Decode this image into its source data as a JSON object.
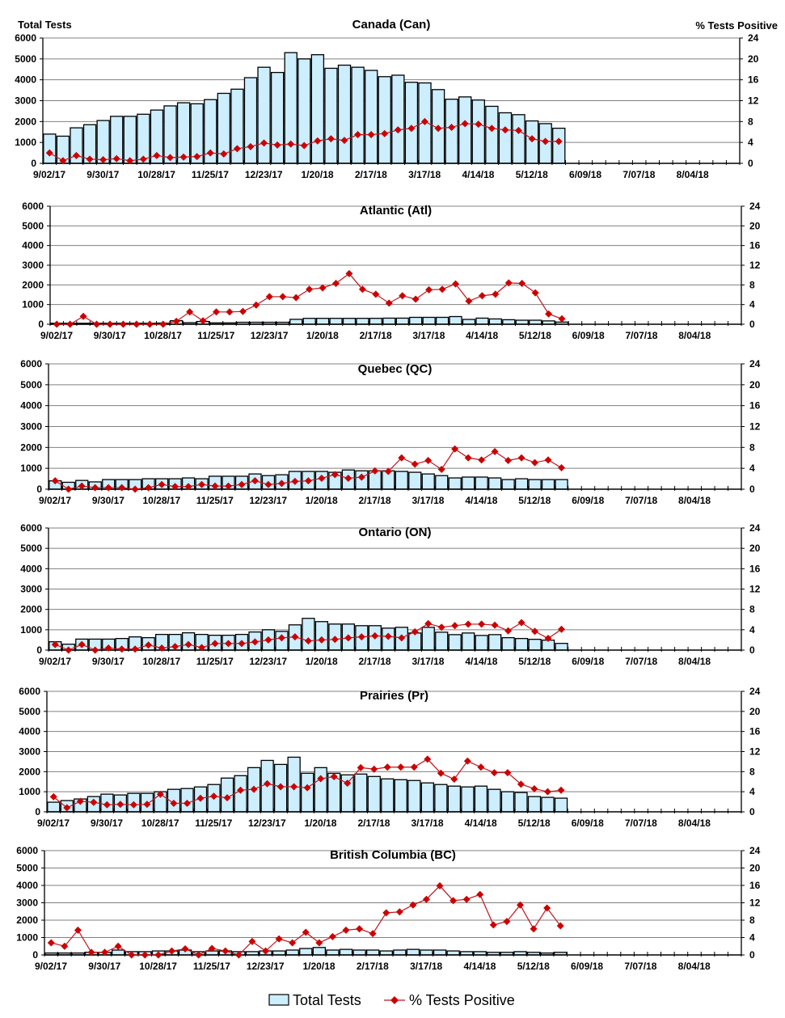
{
  "header": {
    "left_axis_title": "Total Tests",
    "right_axis_title": "% Tests Positive"
  },
  "legend": {
    "bar_label": "Total Tests",
    "line_label": "% Tests Positive"
  },
  "colors": {
    "bar_fill": "#cceeff",
    "bar_stroke": "#000000",
    "line": "#c0141c",
    "marker": "#cc0000",
    "grid": "#808080"
  },
  "chart_data": [
    {
      "type": "bar",
      "title": "Canada (Can)",
      "grid": true,
      "ylim": [
        0,
        6000
      ],
      "yticks": [
        0,
        1000,
        2000,
        3000,
        4000,
        5000,
        6000
      ],
      "y2lim": [
        0,
        24
      ],
      "y2ticks": [
        0,
        4,
        8,
        12,
        16,
        20,
        24
      ],
      "xlim": [
        "9/02/17",
        "9/01/18"
      ],
      "xticks": [
        "9/02/17",
        "9/30/17",
        "10/28/17",
        "11/25/17",
        "12/23/17",
        "1/20/18",
        "2/17/18",
        "3/17/18",
        "4/14/18",
        "5/12/18",
        "6/09/18",
        "7/07/18",
        "8/04/18"
      ],
      "categories": [
        "9/02/17",
        "9/09/17",
        "9/16/17",
        "9/23/17",
        "9/30/17",
        "10/07/17",
        "10/14/17",
        "10/21/17",
        "10/28/17",
        "11/04/17",
        "11/11/17",
        "11/18/17",
        "11/25/17",
        "12/02/17",
        "12/09/17",
        "12/16/17",
        "12/23/17",
        "12/30/17",
        "1/06/18",
        "1/13/18",
        "1/20/18",
        "1/27/18",
        "2/03/18",
        "2/10/18",
        "2/17/18",
        "2/24/18",
        "3/03/18",
        "3/10/18",
        "3/17/18",
        "3/24/18",
        "3/31/18",
        "4/07/18",
        "4/14/18",
        "4/21/18",
        "4/28/18",
        "5/05/18",
        "5/12/18",
        "5/19/18",
        "5/26/18"
      ],
      "series": [
        {
          "name": "Total Tests",
          "type": "bar",
          "axis": "left",
          "values": [
            1400,
            1300,
            1700,
            1850,
            2050,
            2250,
            2250,
            2350,
            2550,
            2750,
            2900,
            2850,
            3050,
            3350,
            3550,
            4100,
            4600,
            4350,
            5300,
            5000,
            5200,
            4550,
            4700,
            4600,
            4450,
            4150,
            4220,
            3880,
            3850,
            3530,
            3070,
            3180,
            3030,
            2730,
            2420,
            2330,
            2030,
            1900,
            1680
          ]
        },
        {
          "name": "% Tests Positive",
          "type": "line",
          "axis": "right",
          "values": [
            2.0,
            0.5,
            1.5,
            0.8,
            0.7,
            0.9,
            0.5,
            0.8,
            1.5,
            1.1,
            1.2,
            1.3,
            2.0,
            1.8,
            2.8,
            3.2,
            3.9,
            3.5,
            3.7,
            3.4,
            4.3,
            4.7,
            4.4,
            5.5,
            5.5,
            5.7,
            6.4,
            6.7,
            8.0,
            6.7,
            6.9,
            7.6,
            7.5,
            6.7,
            6.4,
            6.3,
            4.7,
            4.2,
            4.2
          ]
        }
      ]
    },
    {
      "type": "bar",
      "title": "Atlantic (Atl)",
      "grid": true,
      "ylim": [
        0,
        6000
      ],
      "yticks": [
        0,
        1000,
        2000,
        3000,
        4000,
        5000,
        6000
      ],
      "y2lim": [
        0,
        24
      ],
      "y2ticks": [
        0,
        4,
        8,
        12,
        16,
        20,
        24
      ],
      "xlim": [
        "9/02/17",
        "9/01/18"
      ],
      "xticks": [
        "9/02/17",
        "9/30/17",
        "10/28/17",
        "11/25/17",
        "12/23/17",
        "1/20/18",
        "2/17/18",
        "3/17/18",
        "4/14/18",
        "5/12/18",
        "6/09/18",
        "7/07/18",
        "8/04/18"
      ],
      "categories": [
        "9/02/17",
        "9/09/17",
        "9/16/17",
        "9/23/17",
        "9/30/17",
        "10/07/17",
        "10/14/17",
        "10/21/17",
        "10/28/17",
        "11/04/17",
        "11/11/17",
        "11/18/17",
        "11/25/17",
        "12/02/17",
        "12/09/17",
        "12/16/17",
        "12/23/17",
        "12/30/17",
        "1/06/18",
        "1/13/18",
        "1/20/18",
        "1/27/18",
        "2/03/18",
        "2/10/18",
        "2/17/18",
        "2/24/18",
        "3/03/18",
        "3/10/18",
        "3/17/18",
        "3/24/18",
        "3/31/18",
        "4/07/18",
        "4/14/18",
        "4/21/18",
        "4/28/18",
        "5/05/18",
        "5/12/18",
        "5/19/18",
        "5/26/18"
      ],
      "series": [
        {
          "name": "Total Tests",
          "type": "bar",
          "axis": "left",
          "values": [
            50,
            50,
            50,
            50,
            50,
            50,
            50,
            50,
            60,
            180,
            80,
            140,
            70,
            70,
            100,
            100,
            100,
            100,
            250,
            300,
            300,
            300,
            300,
            300,
            300,
            310,
            310,
            350,
            350,
            350,
            390,
            245,
            310,
            270,
            230,
            205,
            205,
            170,
            110
          ]
        },
        {
          "name": "% Tests Positive",
          "type": "line",
          "axis": "right",
          "values": [
            0,
            0,
            1.6,
            0,
            0,
            0,
            0,
            0,
            0,
            0.6,
            2.5,
            0.7,
            2.5,
            2.5,
            2.6,
            3.9,
            5.6,
            5.6,
            5.4,
            7.1,
            7.4,
            8.3,
            10.3,
            7.1,
            6.1,
            4.3,
            5.8,
            5.1,
            7.0,
            7.1,
            8.2,
            4.7,
            5.8,
            6.1,
            8.4,
            8.3,
            6.4,
            2.1,
            1.1
          ]
        }
      ]
    },
    {
      "type": "bar",
      "title": "Quebec (QC)",
      "grid": true,
      "ylim": [
        0,
        6000
      ],
      "yticks": [
        0,
        1000,
        2000,
        3000,
        4000,
        5000,
        6000
      ],
      "y2lim": [
        0,
        24
      ],
      "y2ticks": [
        0,
        4,
        8,
        12,
        16,
        20,
        24
      ],
      "xlim": [
        "9/02/17",
        "9/01/18"
      ],
      "xticks": [
        "9/02/17",
        "9/30/17",
        "10/28/17",
        "11/25/17",
        "12/23/17",
        "1/20/18",
        "2/17/18",
        "3/17/18",
        "4/14/18",
        "5/12/18",
        "6/09/18",
        "7/07/18",
        "8/04/18"
      ],
      "categories": [
        "9/02/17",
        "9/09/17",
        "9/16/17",
        "9/23/17",
        "9/30/17",
        "10/07/17",
        "10/14/17",
        "10/21/17",
        "10/28/17",
        "11/04/17",
        "11/11/17",
        "11/18/17",
        "11/25/17",
        "12/02/17",
        "12/09/17",
        "12/16/17",
        "12/23/17",
        "12/30/17",
        "1/06/18",
        "1/13/18",
        "1/20/18",
        "1/27/18",
        "2/03/18",
        "2/10/18",
        "2/17/18",
        "2/24/18",
        "3/03/18",
        "3/10/18",
        "3/17/18",
        "3/24/18",
        "3/31/18",
        "4/07/18",
        "4/14/18",
        "4/21/18",
        "4/28/18",
        "5/05/18",
        "5/12/18",
        "5/19/18",
        "5/26/18"
      ],
      "series": [
        {
          "name": "Total Tests",
          "type": "bar",
          "axis": "left",
          "values": [
            400,
            330,
            420,
            350,
            460,
            460,
            460,
            500,
            500,
            500,
            540,
            500,
            620,
            620,
            620,
            730,
            650,
            690,
            850,
            850,
            850,
            810,
            920,
            880,
            880,
            880,
            850,
            810,
            730,
            650,
            540,
            580,
            580,
            540,
            460,
            500,
            460,
            460,
            460
          ]
        },
        {
          "name": "% Tests Positive",
          "type": "line",
          "axis": "right",
          "values": [
            1.6,
            0,
            0.6,
            0.3,
            0.3,
            0.3,
            0,
            0.3,
            0.9,
            0.5,
            0.5,
            0.9,
            0.6,
            0.6,
            0.9,
            1.6,
            0.9,
            1.1,
            1.5,
            1.6,
            2.1,
            2.8,
            2.1,
            2.3,
            3.5,
            3.4,
            6.0,
            4.8,
            5.5,
            3.8,
            7.7,
            6.0,
            5.6,
            7.2,
            5.5,
            6.0,
            5.1,
            5.6,
            4.1
          ]
        }
      ]
    },
    {
      "type": "bar",
      "title": "Ontario (ON)",
      "grid": true,
      "ylim": [
        0,
        6000
      ],
      "yticks": [
        0,
        1000,
        2000,
        3000,
        4000,
        5000,
        6000
      ],
      "y2lim": [
        0,
        24
      ],
      "y2ticks": [
        0,
        4,
        8,
        12,
        16,
        20,
        24
      ],
      "xlim": [
        "9/02/17",
        "9/01/18"
      ],
      "xticks": [
        "9/02/17",
        "9/30/17",
        "10/28/17",
        "11/25/17",
        "12/23/17",
        "1/20/18",
        "2/17/18",
        "3/17/18",
        "4/14/18",
        "5/12/18",
        "6/09/18",
        "7/07/18",
        "8/04/18"
      ],
      "categories": [
        "9/02/17",
        "9/09/17",
        "9/16/17",
        "9/23/17",
        "9/30/17",
        "10/07/17",
        "10/14/17",
        "10/21/17",
        "10/28/17",
        "11/04/17",
        "11/11/17",
        "11/18/17",
        "11/25/17",
        "12/02/17",
        "12/09/17",
        "12/16/17",
        "12/23/17",
        "12/30/17",
        "1/06/18",
        "1/13/18",
        "1/20/18",
        "1/27/18",
        "2/03/18",
        "2/10/18",
        "2/17/18",
        "2/24/18",
        "3/03/18",
        "3/10/18",
        "3/17/18",
        "3/24/18",
        "3/31/18",
        "4/07/18",
        "4/14/18",
        "4/21/18",
        "4/28/18",
        "5/05/18",
        "5/12/18",
        "5/19/18",
        "5/26/18"
      ],
      "series": [
        {
          "name": "Total Tests",
          "type": "bar",
          "axis": "left",
          "values": [
            410,
            290,
            540,
            540,
            540,
            570,
            650,
            610,
            770,
            770,
            850,
            770,
            730,
            730,
            770,
            890,
            1000,
            920,
            1240,
            1560,
            1400,
            1280,
            1280,
            1200,
            1200,
            1080,
            1120,
            840,
            1120,
            880,
            760,
            840,
            720,
            760,
            610,
            570,
            530,
            490,
            330
          ]
        },
        {
          "name": "% Tests Positive",
          "type": "line",
          "axis": "right",
          "values": [
            1.1,
            0,
            1.1,
            0,
            0.4,
            0.2,
            0.2,
            1.0,
            0.4,
            0.7,
            1.1,
            0.5,
            1.3,
            1.3,
            1.3,
            1.6,
            2.0,
            2.4,
            2.6,
            1.8,
            2.0,
            2.1,
            2.4,
            2.6,
            2.8,
            2.7,
            2.4,
            3.6,
            5.2,
            4.5,
            4.8,
            5.1,
            5.1,
            4.9,
            3.8,
            5.4,
            3.7,
            2.3,
            4.1
          ]
        }
      ]
    },
    {
      "type": "bar",
      "title": "Prairies (Pr)",
      "grid": true,
      "ylim": [
        0,
        6000
      ],
      "yticks": [
        0,
        1000,
        2000,
        3000,
        4000,
        5000,
        6000
      ],
      "y2lim": [
        0,
        24
      ],
      "y2ticks": [
        0,
        4,
        8,
        12,
        16,
        20,
        24
      ],
      "xlim": [
        "9/02/17",
        "9/01/18"
      ],
      "xticks": [
        "9/02/17",
        "9/30/17",
        "10/28/17",
        "11/25/17",
        "12/23/17",
        "1/20/18",
        "2/17/18",
        "3/17/18",
        "4/14/18",
        "5/12/18",
        "6/09/18",
        "7/07/18",
        "8/04/18"
      ],
      "categories": [
        "9/02/17",
        "9/09/17",
        "9/16/17",
        "9/23/17",
        "9/30/17",
        "10/07/17",
        "10/14/17",
        "10/21/17",
        "10/28/17",
        "11/04/17",
        "11/11/17",
        "11/18/17",
        "11/25/17",
        "12/02/17",
        "12/09/17",
        "12/16/17",
        "12/23/17",
        "12/30/17",
        "1/06/18",
        "1/13/18",
        "1/20/18",
        "1/27/18",
        "2/03/18",
        "2/10/18",
        "2/17/18",
        "2/24/18",
        "3/03/18",
        "3/10/18",
        "3/17/18",
        "3/24/18",
        "3/31/18",
        "4/07/18",
        "4/14/18",
        "4/21/18",
        "4/28/18",
        "5/05/18",
        "5/12/18",
        "5/19/18",
        "5/26/18"
      ],
      "series": [
        {
          "name": "Total Tests",
          "type": "bar",
          "axis": "left",
          "values": [
            480,
            560,
            640,
            760,
            880,
            840,
            920,
            920,
            1000,
            1120,
            1160,
            1240,
            1360,
            1680,
            1800,
            2200,
            2560,
            2360,
            2720,
            1920,
            2200,
            1920,
            1840,
            1880,
            1760,
            1640,
            1600,
            1560,
            1440,
            1360,
            1280,
            1240,
            1280,
            1120,
            1000,
            960,
            760,
            720,
            680
          ]
        },
        {
          "name": "% Tests Positive",
          "type": "line",
          "axis": "right",
          "values": [
            3.0,
            0.8,
            2.1,
            1.9,
            1.4,
            1.5,
            1.4,
            1.5,
            3.5,
            1.7,
            1.7,
            2.7,
            3.1,
            2.8,
            4.3,
            4.5,
            5.6,
            5.0,
            5.0,
            4.8,
            6.6,
            7.0,
            5.7,
            8.8,
            8.5,
            8.9,
            8.9,
            8.9,
            10.5,
            7.7,
            6.5,
            10.1,
            8.9,
            7.8,
            7.8,
            5.5,
            4.6,
            4.0,
            4.3
          ]
        }
      ]
    },
    {
      "type": "bar",
      "title": "British Columbia (BC)",
      "grid": true,
      "ylim": [
        0,
        6000
      ],
      "yticks": [
        0,
        1000,
        2000,
        3000,
        4000,
        5000,
        6000
      ],
      "y2lim": [
        0,
        24
      ],
      "y2ticks": [
        0,
        4,
        8,
        12,
        16,
        20,
        24
      ],
      "xlim": [
        "9/02/17",
        "9/01/18"
      ],
      "xticks": [
        "9/02/17",
        "9/30/17",
        "10/28/17",
        "11/25/17",
        "12/23/17",
        "1/20/18",
        "2/17/18",
        "3/17/18",
        "4/14/18",
        "5/12/18",
        "6/09/18",
        "7/07/18",
        "8/04/18"
      ],
      "categories": [
        "9/02/17",
        "9/09/17",
        "9/16/17",
        "9/23/17",
        "9/30/17",
        "10/07/17",
        "10/14/17",
        "10/21/17",
        "10/28/17",
        "11/04/17",
        "11/11/17",
        "11/18/17",
        "11/25/17",
        "12/02/17",
        "12/09/17",
        "12/16/17",
        "12/23/17",
        "12/30/17",
        "1/06/18",
        "1/13/18",
        "1/20/18",
        "1/27/18",
        "2/03/18",
        "2/10/18",
        "2/17/18",
        "2/24/18",
        "3/03/18",
        "3/10/18",
        "3/17/18",
        "3/24/18",
        "3/31/18",
        "4/07/18",
        "4/14/18",
        "4/21/18",
        "4/28/18",
        "5/05/18",
        "5/12/18",
        "5/19/18",
        "5/26/18"
      ],
      "series": [
        {
          "name": "Total Tests",
          "type": "bar",
          "axis": "left",
          "values": [
            110,
            110,
            110,
            150,
            150,
            280,
            190,
            190,
            230,
            230,
            280,
            190,
            230,
            230,
            190,
            190,
            230,
            230,
            280,
            370,
            430,
            280,
            320,
            280,
            280,
            230,
            280,
            320,
            280,
            280,
            230,
            190,
            190,
            150,
            150,
            190,
            150,
            110,
            150
          ]
        },
        {
          "name": "% Tests Positive",
          "type": "line",
          "axis": "right",
          "values": [
            2.8,
            2.0,
            5.7,
            0.6,
            0.6,
            2.0,
            0,
            0,
            0,
            0.9,
            1.4,
            0,
            1.5,
            0.9,
            0,
            3.1,
            0.9,
            3.7,
            2.8,
            5.2,
            2.8,
            4.2,
            5.7,
            6.0,
            4.9,
            9.7,
            9.9,
            11.5,
            12.8,
            15.9,
            12.5,
            12.8,
            13.9,
            6.9,
            7.7,
            11.5,
            6.0,
            10.8,
            6.7
          ]
        }
      ]
    }
  ]
}
